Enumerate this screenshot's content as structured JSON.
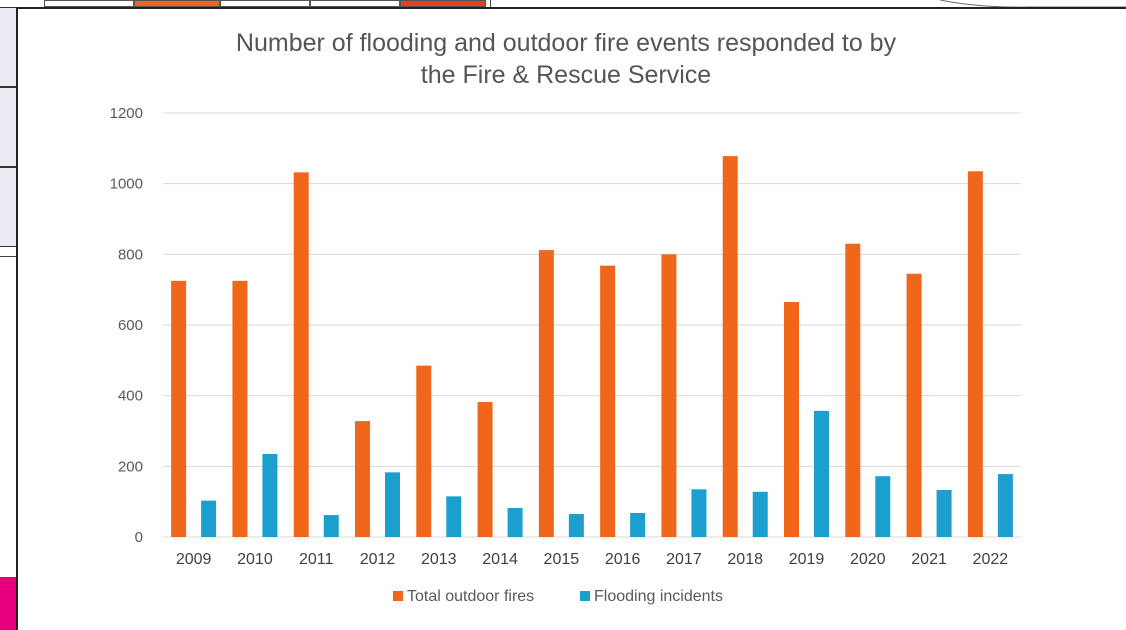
{
  "chart_data": {
    "type": "bar",
    "title_lines": [
      "Number of flooding and outdoor fire events responded to by",
      "the Fire & Rescue Service"
    ],
    "categories": [
      "2009",
      "2010",
      "2011",
      "2012",
      "2013",
      "2014",
      "2015",
      "2016",
      "2017",
      "2018",
      "2019",
      "2020",
      "2021",
      "2022"
    ],
    "series": [
      {
        "name": "Total outdoor fires",
        "color": "#f0661b",
        "values": [
          725,
          725,
          1032,
          328,
          485,
          382,
          812,
          768,
          800,
          1078,
          665,
          830,
          745,
          1035
        ]
      },
      {
        "name": "Flooding incidents",
        "color": "#1a9fcf",
        "values": [
          103,
          235,
          62,
          183,
          115,
          82,
          65,
          68,
          135,
          128,
          357,
          172,
          133,
          178
        ]
      }
    ],
    "ylim": [
      0,
      1200
    ],
    "yticks": [
      0,
      200,
      400,
      600,
      800,
      1000,
      1200
    ],
    "xlabel": "",
    "ylabel": "",
    "grid": true,
    "legend": "bottom"
  },
  "colors": {
    "grid": "#d9d9d9",
    "background_pink": "#e6007e"
  }
}
